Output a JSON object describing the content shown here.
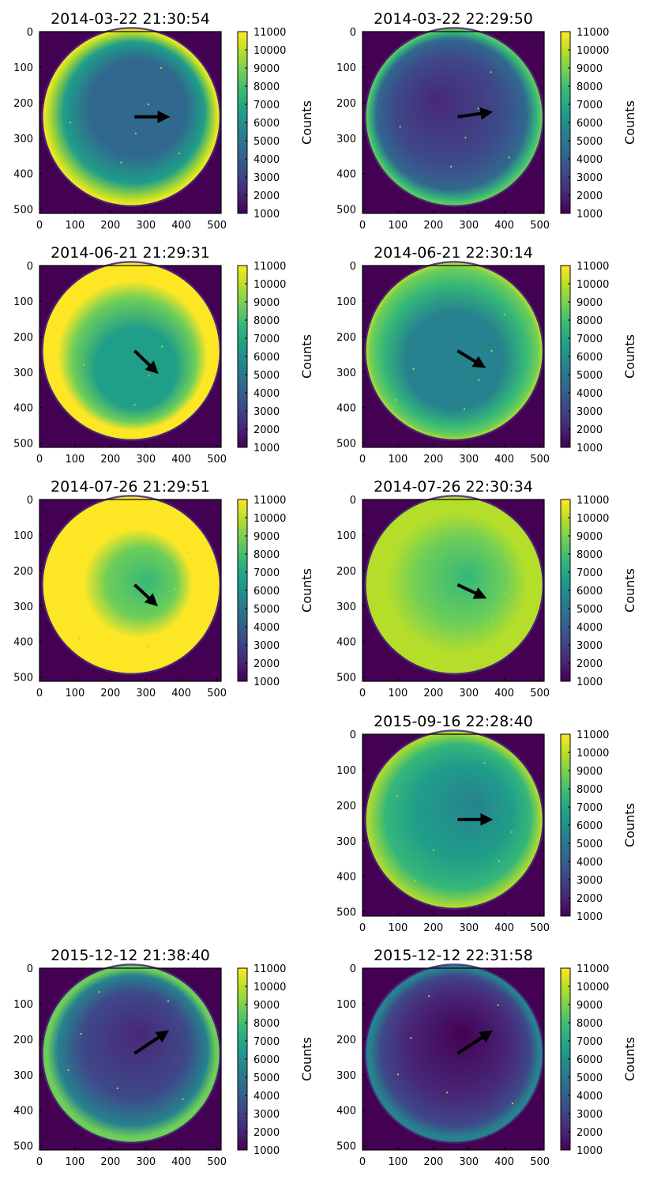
{
  "colors": {
    "viridis": [
      "#440154",
      "#482878",
      "#3e4989",
      "#31688e",
      "#26828e",
      "#1f9e89",
      "#35b779",
      "#6ece58",
      "#b5de2b",
      "#fde725"
    ],
    "arrow": "#000000",
    "frame": "#000000"
  },
  "figure": {
    "colorbar_label": "Counts",
    "colorbar_ticks": [
      "11000",
      "10000",
      "9000",
      "8000",
      "7000",
      "6000",
      "5000",
      "4000",
      "3000",
      "2000",
      "1000"
    ],
    "colorbar_range": [
      1000,
      11000
    ],
    "axis_ticks": [
      "0",
      "100",
      "200",
      "300",
      "400",
      "500"
    ],
    "image_range": [
      0,
      512
    ]
  },
  "panels": [
    {
      "row": 0,
      "col": 0,
      "title": "2014-03-22 21:30:54",
      "brightness": "ring-left-bottom",
      "arrow": {
        "from": [
          268,
          240
        ],
        "to": [
          352,
          240
        ]
      }
    },
    {
      "row": 0,
      "col": 1,
      "title": "2014-03-22 22:29:50",
      "brightness": "dark-ring-right",
      "arrow": {
        "from": [
          268,
          240
        ],
        "to": [
          352,
          228
        ]
      }
    },
    {
      "row": 1,
      "col": 0,
      "title": "2014-06-21 21:29:31",
      "brightness": "bright-top",
      "arrow": {
        "from": [
          268,
          240
        ],
        "to": [
          324,
          294
        ]
      }
    },
    {
      "row": 1,
      "col": 1,
      "title": "2014-06-21 22:30:14",
      "brightness": "medium-top",
      "arrow": {
        "from": [
          268,
          240
        ],
        "to": [
          334,
          280
        ]
      }
    },
    {
      "row": 2,
      "col": 0,
      "title": "2014-07-26 21:29:51",
      "brightness": "very-bright",
      "arrow": {
        "from": [
          268,
          240
        ],
        "to": [
          322,
          290
        ]
      }
    },
    {
      "row": 2,
      "col": 1,
      "title": "2014-07-26 22:30:34",
      "brightness": "bright",
      "arrow": {
        "from": [
          268,
          240
        ],
        "to": [
          336,
          272
        ]
      }
    },
    {
      "row": 3,
      "col": 1,
      "title": "2015-09-16 22:28:40",
      "brightness": "medium-left",
      "arrow": {
        "from": [
          268,
          240
        ],
        "to": [
          352,
          240
        ]
      }
    },
    {
      "row": 4,
      "col": 0,
      "title": "2015-12-12 21:38:40",
      "brightness": "dark-ring",
      "arrow": {
        "from": [
          268,
          240
        ],
        "to": [
          352,
          184
        ]
      }
    },
    {
      "row": 4,
      "col": 1,
      "title": "2015-12-12 22:31:58",
      "brightness": "darker-ring",
      "arrow": {
        "from": [
          268,
          240
        ],
        "to": [
          354,
          184
        ]
      }
    }
  ]
}
